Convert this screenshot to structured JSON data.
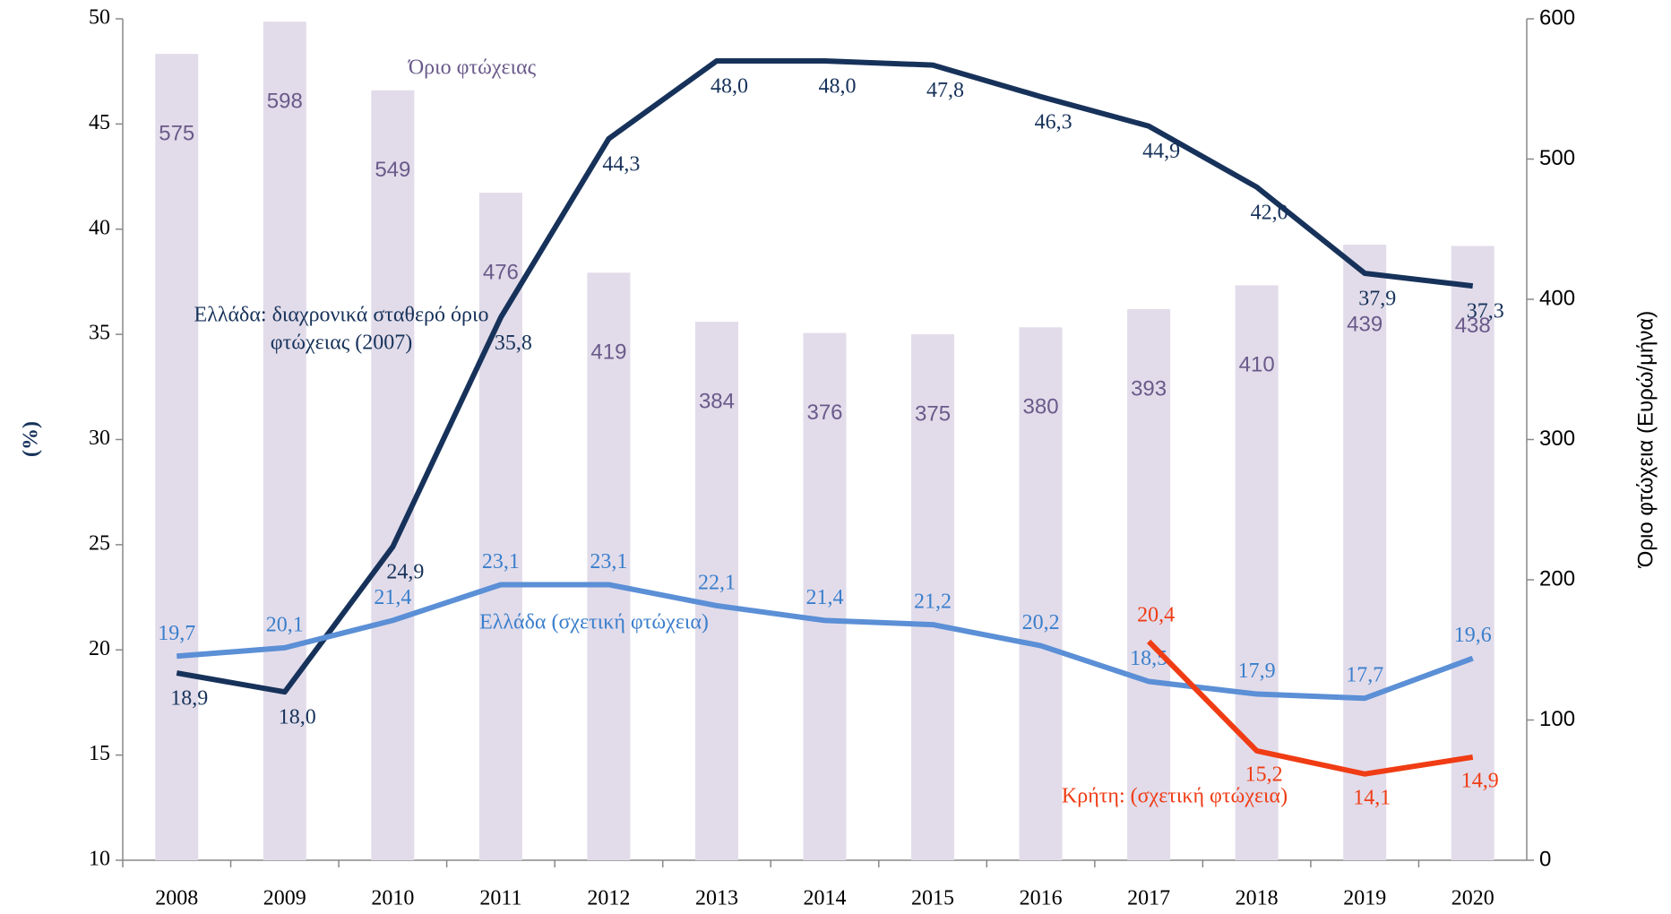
{
  "chart_data": {
    "type": "bar_line",
    "categories": [
      "2008",
      "2009",
      "2010",
      "2011",
      "2012",
      "2013",
      "2014",
      "2015",
      "2016",
      "2017",
      "2018",
      "2019",
      "2020"
    ],
    "ylabel": "(%)",
    "y2label": "Όριο φτώχεια (Ευρώ/μήνα)",
    "ylim": [
      10,
      50
    ],
    "yticks": [
      10,
      15,
      20,
      25,
      30,
      35,
      40,
      45,
      50
    ],
    "y2lim": [
      0,
      600
    ],
    "y2ticks": [
      0,
      100,
      200,
      300,
      400,
      500,
      600
    ],
    "series": [
      {
        "name": "Όριο φτώχειας",
        "kind": "bar",
        "axis": "y2",
        "color": "#e2dcea",
        "label_color": "#6a5a8a",
        "values": [
          575,
          598,
          549,
          476,
          419,
          384,
          376,
          375,
          380,
          393,
          410,
          439,
          438
        ]
      },
      {
        "name": [
          "Ελλάδα: διαχρονικά σταθερό όριο",
          "φτώχειας (2007)"
        ],
        "kind": "line",
        "axis": "y",
        "color": "#17325a",
        "label_color": "#17325a",
        "values": [
          18.9,
          18.0,
          24.9,
          35.8,
          44.3,
          48.0,
          48.0,
          47.8,
          46.3,
          44.9,
          42.0,
          37.9,
          37.3
        ],
        "value_labels": [
          "18,9",
          "18,0",
          "24,9",
          "35,8",
          "44,3",
          "48,0",
          "48,0",
          "47,8",
          "46,3",
          "44,9",
          "42,0",
          "37,9",
          "37,3"
        ]
      },
      {
        "name": "Ελλάδα (σχετική φτώχεια)",
        "kind": "line",
        "axis": "y",
        "color": "#5b8fd6",
        "label_color": "#3a7fcc",
        "values": [
          19.7,
          20.1,
          21.4,
          23.1,
          23.1,
          22.1,
          21.4,
          21.2,
          20.2,
          18.5,
          17.9,
          17.7,
          19.6
        ],
        "value_labels": [
          "19,7",
          "20,1",
          "21,4",
          "23,1",
          "23,1",
          "22,1",
          "21,4",
          "21,2",
          "20,2",
          "18,5",
          "17,9",
          "17,7",
          "19,6"
        ]
      },
      {
        "name": "Κρήτη: (σχετική φτώχεια)",
        "kind": "line",
        "axis": "y",
        "color": "#f03c14",
        "label_color": "#f03c14",
        "values": [
          null,
          null,
          null,
          null,
          null,
          null,
          null,
          null,
          null,
          20.4,
          15.2,
          14.1,
          14.9
        ],
        "value_labels": [
          null,
          null,
          null,
          null,
          null,
          null,
          null,
          null,
          null,
          "20,4",
          "15,2",
          "14,1",
          "14,9"
        ]
      }
    ]
  }
}
